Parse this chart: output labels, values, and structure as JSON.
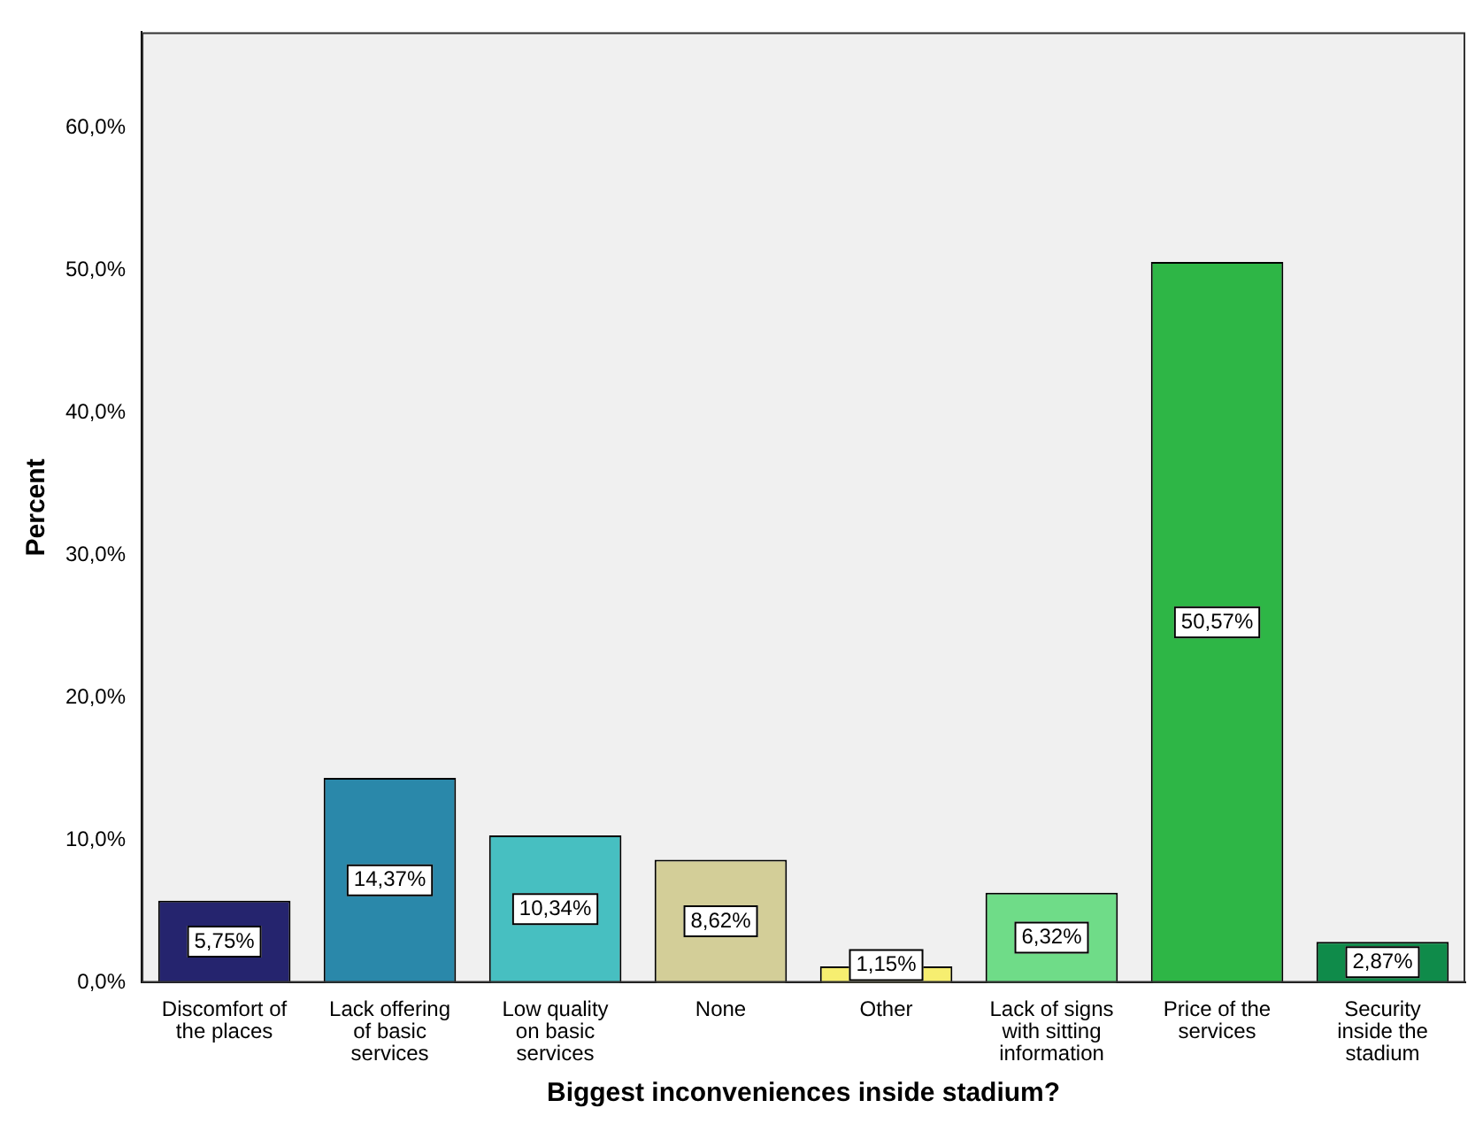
{
  "chart_data": {
    "type": "bar",
    "xlabel": "Biggest inconveniences inside stadium?",
    "ylabel": "Percent",
    "categories": [
      "Discomfort of the places",
      "Lack offering of basic services",
      "Low quality on basic services",
      "None",
      "Other",
      "Lack of signs with sitting information",
      "Price of the services",
      "Security inside the stadium"
    ],
    "values": [
      5.75,
      14.37,
      10.34,
      8.62,
      1.15,
      6.32,
      50.57,
      2.87
    ],
    "colors": [
      "#25246e",
      "#2a88aa",
      "#47bfc1",
      "#d3ce98",
      "#f6ee70",
      "#6fdc88",
      "#2eb646",
      "#0f8b4a"
    ],
    "value_labels": [
      "5,75%",
      "14,37%",
      "10,34%",
      "8,62%",
      "1,15%",
      "6,32%",
      "50,57%",
      "2,87%"
    ],
    "ylim": [
      0,
      66.7
    ],
    "yticks": [
      {
        "value": 0,
        "label": "0,0%"
      },
      {
        "value": 10,
        "label": "10,0%"
      },
      {
        "value": 20,
        "label": "20,0%"
      },
      {
        "value": 30,
        "label": "30,0%"
      },
      {
        "value": 40,
        "label": "40,0%"
      },
      {
        "value": 50,
        "label": "50,0%"
      },
      {
        "value": 60,
        "label": "60,0%"
      }
    ],
    "grid": false,
    "legend": false
  }
}
